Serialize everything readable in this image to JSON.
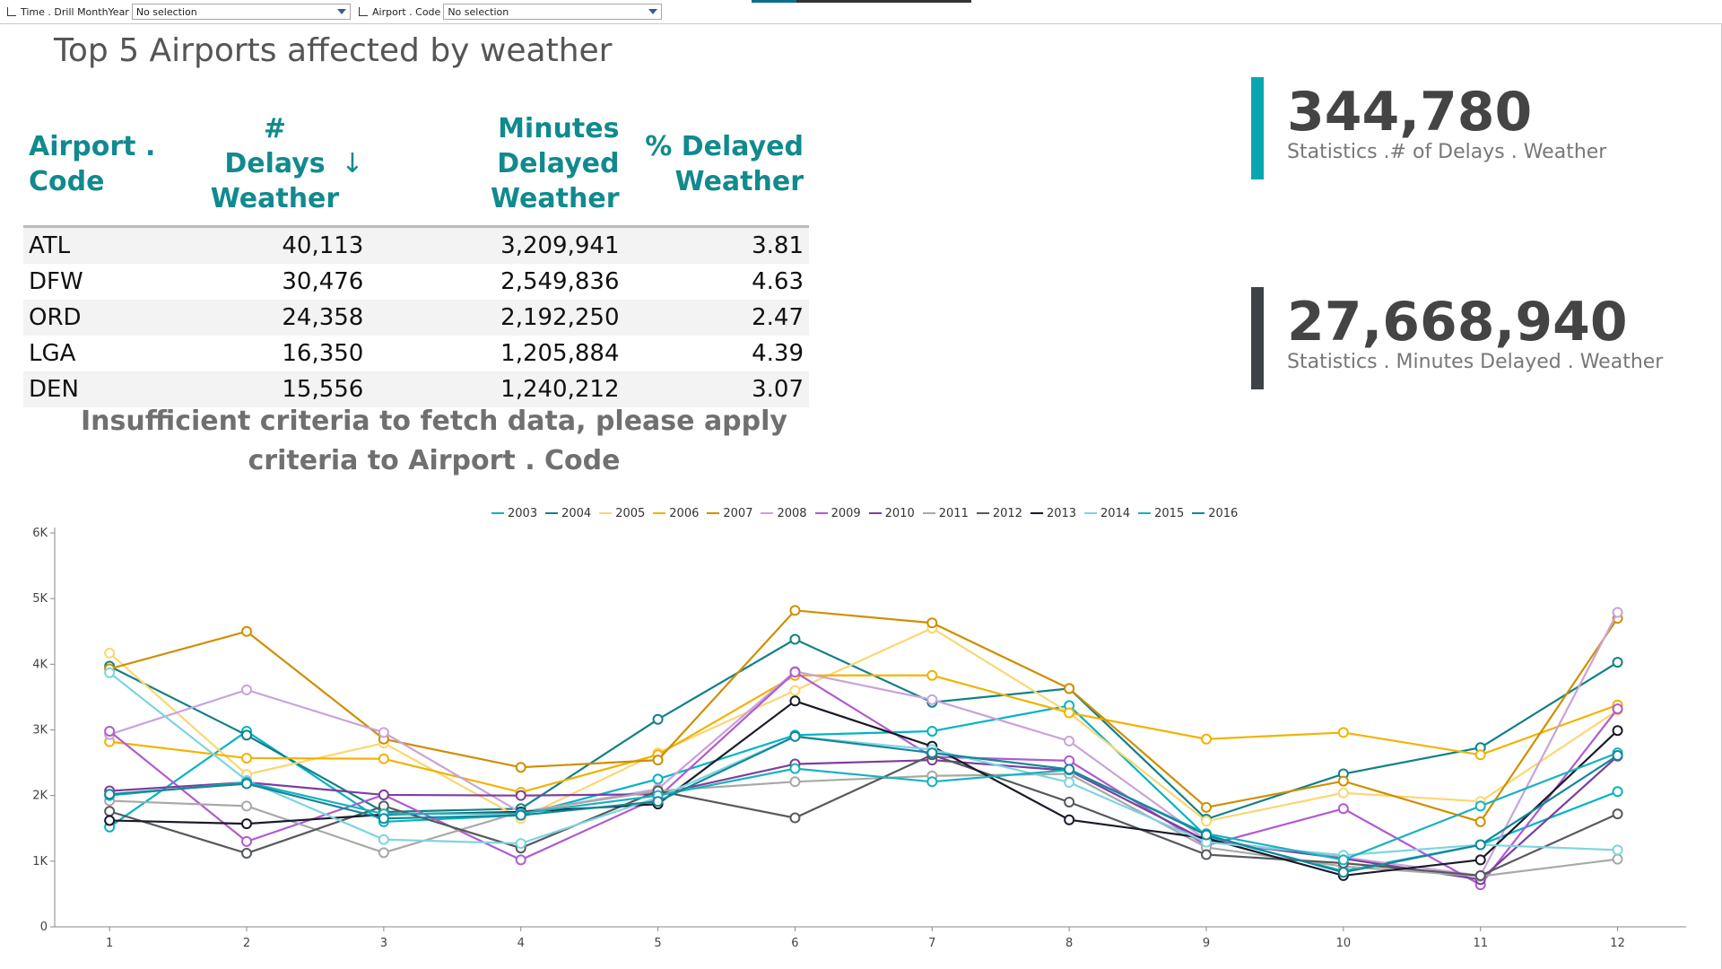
{
  "filters": [
    {
      "label": "Time . Drill MonthYear",
      "value": "No selection"
    },
    {
      "label": "Airport . Code",
      "value": "No selection"
    }
  ],
  "title": "Top 5 Airports affected by weather",
  "table": {
    "headers": [
      {
        "line1": "Airport . Code",
        "line2": ""
      },
      {
        "line1": "# Delays",
        "line2": "Weather",
        "sort_icon": "down-arrow-icon"
      },
      {
        "line1": "Minutes Delayed",
        "line2": "Weather"
      },
      {
        "line1": "% Delayed",
        "line2": "Weather"
      }
    ],
    "rows": [
      {
        "code": "ATL",
        "delays": "40,113",
        "minutes": "3,209,941",
        "pct": "3.81"
      },
      {
        "code": "DFW",
        "delays": "30,476",
        "minutes": "2,549,836",
        "pct": "4.63"
      },
      {
        "code": "ORD",
        "delays": "24,358",
        "minutes": "2,192,250",
        "pct": "2.47"
      },
      {
        "code": "LGA",
        "delays": "16,350",
        "minutes": "1,205,884",
        "pct": "4.39"
      },
      {
        "code": "DEN",
        "delays": "15,556",
        "minutes": "1,240,212",
        "pct": "3.07"
      }
    ]
  },
  "message": "Insufficient criteria to fetch data, please apply criteria to Airport . Code",
  "kpis": [
    {
      "value": "344,780",
      "label": "Statistics .# of Delays . Weather",
      "color": "#0aa6b0"
    },
    {
      "value": "27,668,940",
      "label": "Statistics . Minutes Delayed . Weather",
      "color": "#3d4347"
    }
  ],
  "chart_data": {
    "type": "line",
    "x": [
      1,
      2,
      3,
      4,
      5,
      6,
      7,
      8,
      9,
      10,
      11,
      12
    ],
    "ylim": [
      0,
      6000
    ],
    "yticks": [
      0,
      1000,
      2000,
      3000,
      4000,
      5000,
      6000
    ],
    "ytick_labels": [
      "0",
      "1K",
      "2K",
      "3K",
      "4K",
      "5K",
      "6K"
    ],
    "legend_position": "top-center",
    "grid": false,
    "series": [
      {
        "name": "2003",
        "color": "#00b4c4",
        "values": [
          1520,
          2980,
          1600,
          1700,
          2250,
          2920,
          2980,
          3370,
          1380,
          850,
          1250,
          2060
        ]
      },
      {
        "name": "2004",
        "color": "#118089",
        "values": [
          3970,
          2920,
          1750,
          1800,
          3160,
          4380,
          3420,
          3630,
          1640,
          2330,
          2730,
          4030
        ]
      },
      {
        "name": "2005",
        "color": "#fcd673",
        "values": [
          4170,
          2320,
          2800,
          1650,
          2650,
          3600,
          4550,
          3260,
          1610,
          2040,
          1910,
          3300
        ]
      },
      {
        "name": "2006",
        "color": "#f2b200",
        "values": [
          2820,
          2570,
          2560,
          2050,
          2620,
          3830,
          3830,
          3260,
          2860,
          2960,
          2620,
          3380
        ]
      },
      {
        "name": "2007",
        "color": "#cf8f00",
        "values": [
          3930,
          4500,
          2860,
          2430,
          2540,
          4820,
          4630,
          3630,
          1820,
          2220,
          1600,
          4700
        ]
      },
      {
        "name": "2008",
        "color": "#c9a3da",
        "values": [
          2930,
          3610,
          2960,
          1740,
          2100,
          3890,
          3460,
          2830,
          1320,
          1060,
          780,
          4790
        ]
      },
      {
        "name": "2009",
        "color": "#b15ad0",
        "values": [
          2980,
          1300,
          2010,
          1020,
          1970,
          3880,
          2590,
          2530,
          1240,
          1800,
          640,
          3320
        ]
      },
      {
        "name": "2010",
        "color": "#7d3e9c",
        "values": [
          2070,
          2200,
          2010,
          2000,
          2020,
          2480,
          2540,
          2380,
          1310,
          1040,
          720,
          2600
        ]
      },
      {
        "name": "2011",
        "color": "#a8a8a8",
        "values": [
          1920,
          1840,
          1130,
          1750,
          2070,
          2210,
          2300,
          2330,
          1210,
          920,
          770,
          1030
        ]
      },
      {
        "name": "2012",
        "color": "#555a5e",
        "values": [
          1760,
          1120,
          1840,
          1200,
          2070,
          1660,
          2620,
          1900,
          1100,
          970,
          780,
          1720
        ]
      },
      {
        "name": "2013",
        "color": "#1a1a2a",
        "values": [
          1620,
          1570,
          1710,
          1750,
          1870,
          3440,
          2750,
          1630,
          1350,
          780,
          1020,
          2990
        ]
      },
      {
        "name": "2014",
        "color": "#7dd4e0",
        "values": [
          3870,
          2230,
          1330,
          1270,
          1970,
          2900,
          2700,
          2200,
          1290,
          1090,
          1250,
          1170
        ]
      },
      {
        "name": "2015",
        "color": "#17b2bf",
        "values": [
          2000,
          2200,
          1720,
          1730,
          2000,
          2410,
          2210,
          2390,
          1420,
          1020,
          1840,
          2650
        ]
      },
      {
        "name": "2016",
        "color": "#14879a",
        "values": [
          2020,
          2180,
          1650,
          1700,
          1910,
          2900,
          2650,
          2400,
          1400,
          830,
          1250,
          2610
        ]
      }
    ]
  }
}
